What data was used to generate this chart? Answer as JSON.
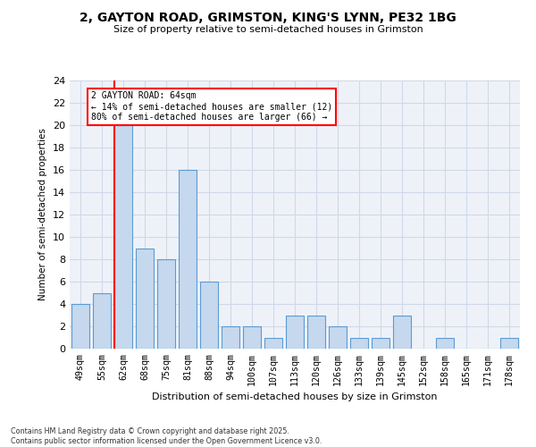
{
  "title1": "2, GAYTON ROAD, GRIMSTON, KING'S LYNN, PE32 1BG",
  "title2": "Size of property relative to semi-detached houses in Grimston",
  "xlabel": "Distribution of semi-detached houses by size in Grimston",
  "ylabel": "Number of semi-detached properties",
  "categories": [
    "49sqm",
    "55sqm",
    "62sqm",
    "68sqm",
    "75sqm",
    "81sqm",
    "88sqm",
    "94sqm",
    "100sqm",
    "107sqm",
    "113sqm",
    "120sqm",
    "126sqm",
    "133sqm",
    "139sqm",
    "145sqm",
    "152sqm",
    "158sqm",
    "165sqm",
    "171sqm",
    "178sqm"
  ],
  "values": [
    4,
    5,
    20,
    9,
    8,
    16,
    6,
    2,
    2,
    1,
    3,
    3,
    2,
    1,
    1,
    3,
    0,
    1,
    0,
    0,
    1
  ],
  "bar_color": "#c5d8ed",
  "bar_edge_color": "#5b9bd5",
  "grid_color": "#d0d8e8",
  "background_color": "#eef2f8",
  "red_line_index": 2,
  "annotation_title": "2 GAYTON ROAD: 64sqm",
  "annotation_line1": "← 14% of semi-detached houses are smaller (12)",
  "annotation_line2": "80% of semi-detached houses are larger (66) →",
  "footer1": "Contains HM Land Registry data © Crown copyright and database right 2025.",
  "footer2": "Contains public sector information licensed under the Open Government Licence v3.0.",
  "ylim": [
    0,
    24
  ],
  "yticks": [
    0,
    2,
    4,
    6,
    8,
    10,
    12,
    14,
    16,
    18,
    20,
    22,
    24
  ]
}
